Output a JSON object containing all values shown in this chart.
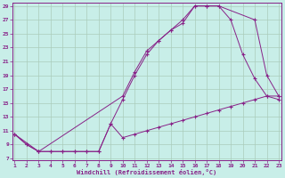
{
  "xlabel": "Windchill (Refroidissement éolien,°C)",
  "bg_color": "#c8eee8",
  "grid_color": "#aaccbb",
  "line_color": "#882288",
  "xmin": 1,
  "xmax": 23,
  "ymin": 7,
  "ymax": 29,
  "yticks": [
    7,
    9,
    11,
    13,
    15,
    17,
    19,
    21,
    23,
    25,
    27,
    29
  ],
  "xticks": [
    1,
    2,
    3,
    4,
    5,
    6,
    7,
    8,
    9,
    10,
    11,
    12,
    13,
    14,
    15,
    16,
    17,
    18,
    19,
    20,
    21,
    22,
    23
  ],
  "series": [
    {
      "x": [
        1,
        2,
        3,
        10,
        11,
        12,
        13,
        14,
        15,
        16,
        17,
        18,
        19,
        20,
        21,
        22,
        23
      ],
      "y": [
        10.5,
        9,
        8,
        16,
        19.5,
        22.5,
        24,
        25.5,
        27,
        29,
        29,
        29,
        27,
        22,
        18.5,
        16,
        15.5
      ]
    },
    {
      "x": [
        1,
        2,
        3,
        4,
        5,
        6,
        7,
        8,
        9,
        10,
        11,
        12,
        13,
        14,
        15,
        16,
        17,
        18,
        19,
        20,
        21,
        22,
        23
      ],
      "y": [
        10.5,
        9,
        8,
        8,
        8,
        8,
        8,
        8,
        12,
        10,
        10.5,
        11,
        11.5,
        12,
        12.5,
        13,
        13.5,
        14,
        14.5,
        15,
        15.5,
        16,
        16
      ]
    },
    {
      "x": [
        1,
        3,
        4,
        5,
        6,
        7,
        8,
        9,
        10,
        11,
        12,
        13,
        14,
        15,
        16,
        17,
        18,
        21,
        22,
        23
      ],
      "y": [
        10.5,
        8,
        8,
        8,
        8,
        8,
        8,
        12,
        15.5,
        19,
        22,
        24,
        25.5,
        26.5,
        29,
        29,
        29,
        27,
        19,
        16
      ]
    }
  ]
}
